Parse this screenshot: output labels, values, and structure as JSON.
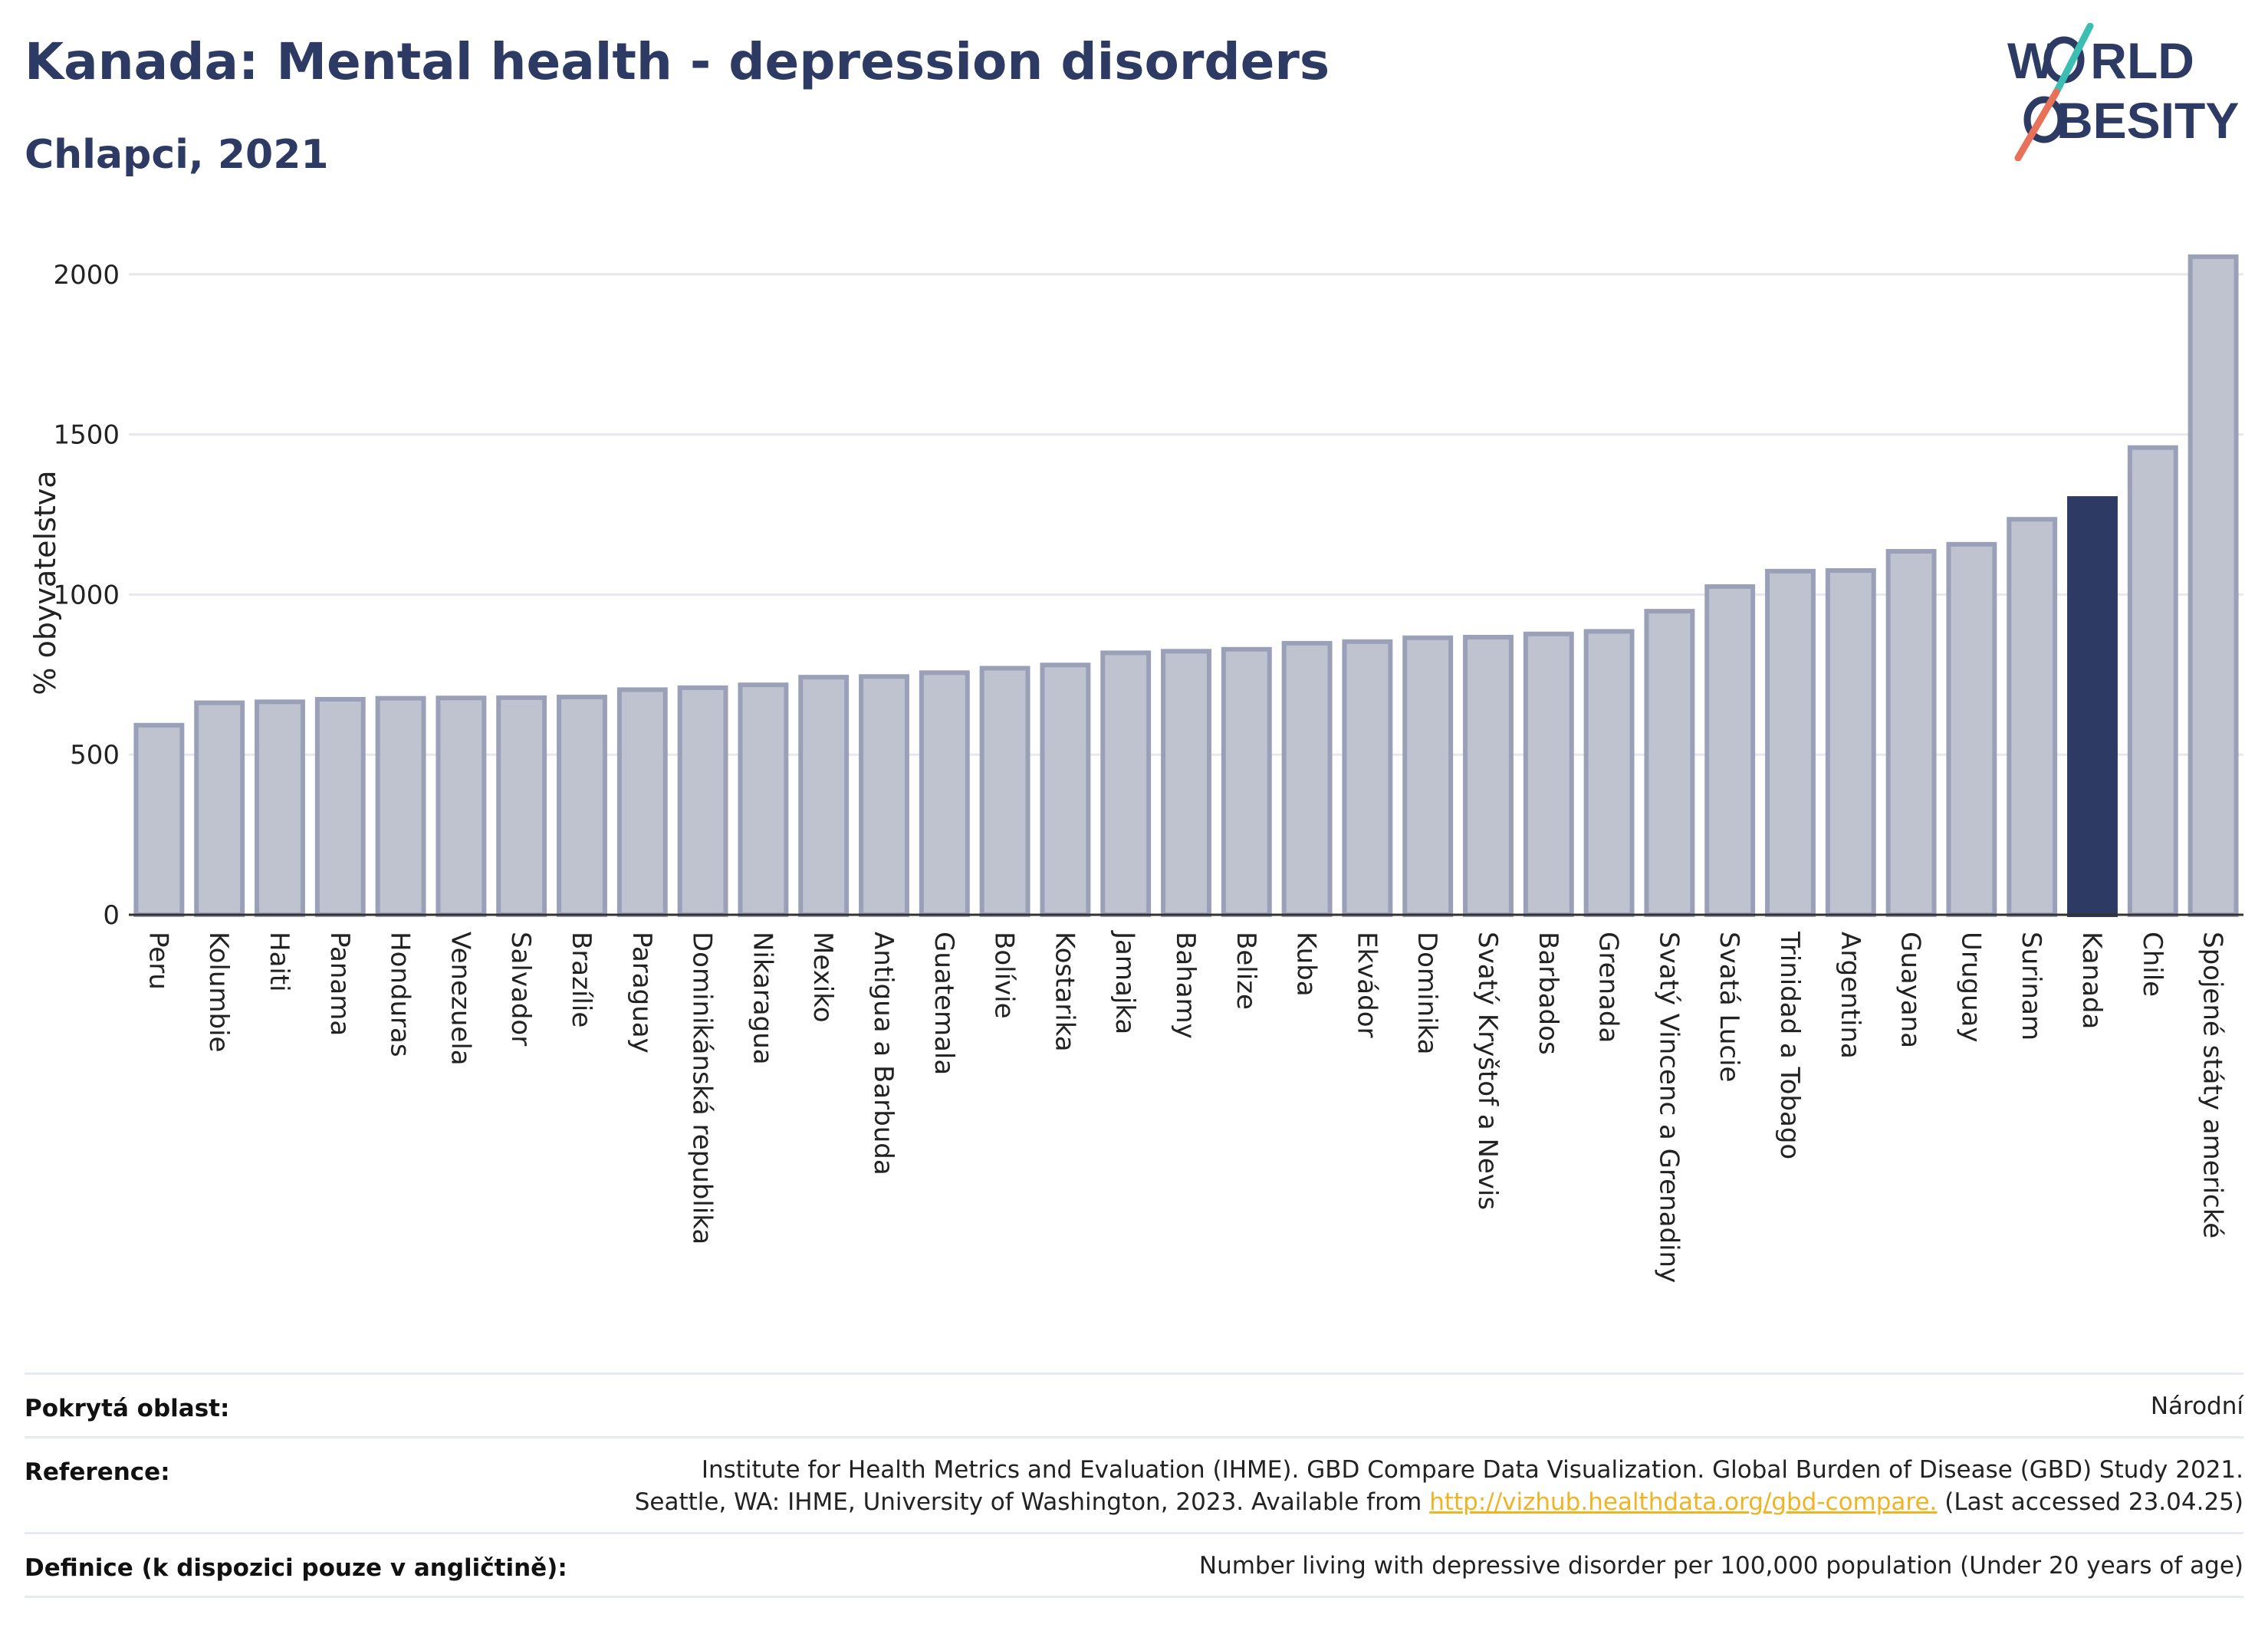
{
  "header": {
    "title": "Kanada: Mental health - depression disorders",
    "subtitle": "Chlapci, 2021"
  },
  "logo": {
    "line1": "W",
    "line1b": "RLD",
    "line2": "BESITY",
    "text": "WORLD OBESITY"
  },
  "chart_data": {
    "type": "bar",
    "ylabel": "% obyvatelstva",
    "xlabel": "",
    "ylim": [
      0,
      2100
    ],
    "yticks": [
      0,
      500,
      1000,
      1500,
      2000
    ],
    "grid": true,
    "highlight": "Kanada",
    "colors": {
      "bar": "#bfc3d0",
      "bar_edge": "#9aa0b8",
      "highlight": "#2d3a64"
    },
    "categories": [
      "Peru",
      "Kolumbie",
      "Haiti",
      "Panama",
      "Honduras",
      "Venezuela",
      "Salvador",
      "Brazílie",
      "Paraguay",
      "Dominikánská republika",
      "Nikaragua",
      "Mexiko",
      "Antigua a Barbuda",
      "Guatemala",
      "Bolívie",
      "Kostarika",
      "Jamajka",
      "Bahamy",
      "Belize",
      "Kuba",
      "Ekvádor",
      "Dominika",
      "Svatý Kryštof a Nevis",
      "Barbados",
      "Grenada",
      "Svatý Vincenc a Grenadiny",
      "Svatá Lucie",
      "Trinidad a Tobago",
      "Argentina",
      "Guayana",
      "Uruguay",
      "Surinam",
      "Kanada",
      "Chile",
      "Spojené státy americké"
    ],
    "values": [
      592,
      662,
      665,
      673,
      676,
      677,
      678,
      680,
      703,
      709,
      718,
      742,
      744,
      756,
      770,
      780,
      818,
      823,
      829,
      848,
      853,
      865,
      867,
      877,
      885,
      948,
      1025,
      1073,
      1075,
      1135,
      1157,
      1235,
      1300,
      1459,
      2055
    ]
  },
  "meta": {
    "rows": [
      {
        "key": "Pokrytá oblast:",
        "value_lines": [
          "Národní"
        ]
      },
      {
        "key": "Reference:",
        "value_lines": [
          "Institute for Health Metrics and Evaluation (IHME). GBD Compare Data Visualization. Global Burden of Disease (GBD) Study 2021.",
          "Seattle, WA: IHME, University of Washington, 2023. Available from "
        ],
        "link": "http://vizhub.healthdata.org/gbd-compare.",
        "after_link": " (Last accessed 23.04.25)"
      },
      {
        "key": "Definice (k dispozici pouze v angličtině):",
        "value_lines": [
          "Number living with depressive disorder per 100,000 population (Under 20 years of age)"
        ]
      }
    ]
  }
}
